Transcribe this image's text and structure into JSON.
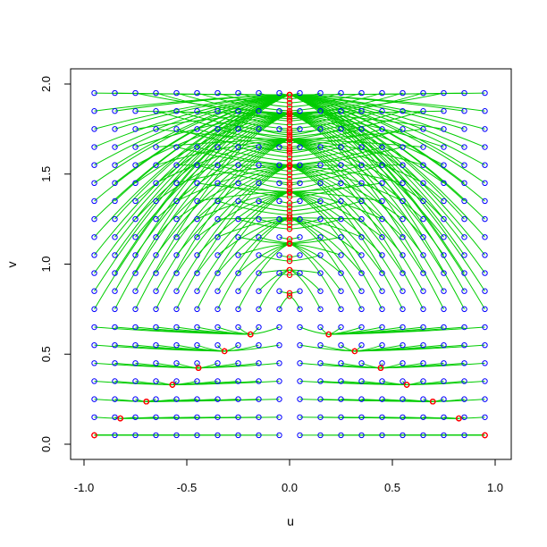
{
  "chart_data": {
    "type": "scatter",
    "title": "",
    "xlabel": "u",
    "ylabel": "v",
    "xlim": [
      -1.0,
      1.0
    ],
    "ylim": [
      0.0,
      2.0
    ],
    "x_ticks": [
      "-1.0",
      "-0.5",
      "0.0",
      "0.5",
      "1.0"
    ],
    "y_ticks": [
      "0.0",
      "0.5",
      "1.0",
      "1.5",
      "2.0"
    ],
    "x_tick_values": [
      -1.0,
      -0.5,
      0.0,
      0.5,
      1.0
    ],
    "y_tick_values": [
      0.0,
      0.5,
      1.0,
      1.5,
      2.0
    ],
    "grid": false,
    "series": [
      {
        "role": "start",
        "color": "#0000ff",
        "marker": "open-circle",
        "x_values": [
          -0.95,
          -0.85,
          -0.75,
          -0.65,
          -0.55,
          -0.45,
          -0.35,
          -0.25,
          -0.15,
          -0.05,
          0.05,
          0.15,
          0.25,
          0.35,
          0.45,
          0.55,
          0.65,
          0.75,
          0.85,
          0.95
        ],
        "y_values": [
          0.05,
          0.15,
          0.25,
          0.35,
          0.45,
          0.55,
          0.65,
          0.75,
          0.85,
          0.95,
          1.05,
          1.15,
          1.25,
          1.35,
          1.45,
          1.55,
          1.65,
          1.75,
          1.85,
          1.95
        ]
      },
      {
        "role": "end",
        "color": "#ff0000",
        "marker": "open-circle",
        "shape": "Y-shaped set: a vertical branch at u = 0 for v ≥ 0.75 and two diagonal branches from (0, 0.75) toward (±0.95, 0.05)"
      }
    ],
    "trajectories": {
      "color": "#00cc00",
      "description": "lines connecting each start point to its end point"
    }
  }
}
